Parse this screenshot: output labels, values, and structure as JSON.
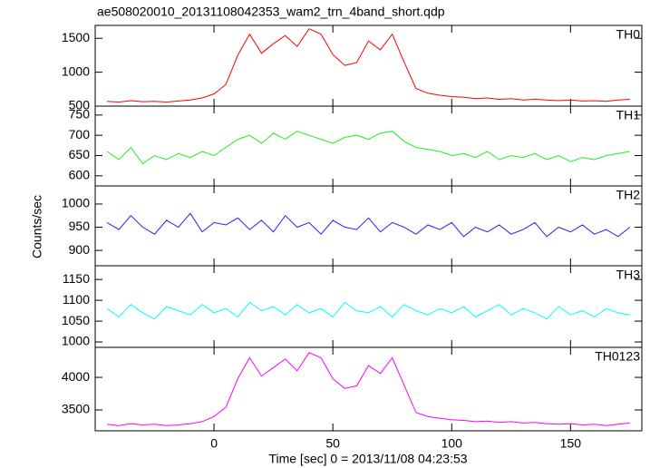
{
  "chart_data": [
    {
      "type": "line",
      "title": "ae508020010_20131108042353_wam2_trn_4band_short.qdp",
      "x": [
        -45,
        -40,
        -35,
        -30,
        -25,
        -20,
        -15,
        -10,
        -5,
        0,
        5,
        10,
        15,
        20,
        25,
        30,
        35,
        40,
        45,
        50,
        55,
        60,
        65,
        70,
        75,
        80,
        85,
        90,
        95,
        100,
        105,
        110,
        115,
        120,
        125,
        130,
        135,
        140,
        145,
        150,
        155,
        160,
        165,
        170,
        175
      ],
      "series": [
        {
          "name": "TH0",
          "color": "#ff0000",
          "values": [
            570,
            560,
            580,
            565,
            570,
            560,
            575,
            590,
            620,
            680,
            820,
            1250,
            1560,
            1280,
            1420,
            1540,
            1380,
            1640,
            1560,
            1260,
            1100,
            1140,
            1460,
            1330,
            1560,
            1150,
            760,
            690,
            660,
            640,
            630,
            610,
            620,
            600,
            610,
            590,
            600,
            590,
            580,
            590,
            575,
            580,
            570,
            590,
            600
          ]
        }
      ],
      "xlim": [
        -50,
        180
      ],
      "ylim": [
        500,
        1690
      ],
      "yticks": [
        500,
        1000,
        1500
      ]
    },
    {
      "type": "line",
      "x": [
        -45,
        -40,
        -35,
        -30,
        -25,
        -20,
        -15,
        -10,
        -5,
        0,
        5,
        10,
        15,
        20,
        25,
        30,
        35,
        40,
        45,
        50,
        55,
        60,
        65,
        70,
        75,
        80,
        85,
        90,
        95,
        100,
        105,
        110,
        115,
        120,
        125,
        130,
        135,
        140,
        145,
        150,
        155,
        160,
        165,
        170,
        175
      ],
      "series": [
        {
          "name": "TH1",
          "color": "#22ee22",
          "values": [
            660,
            640,
            670,
            630,
            650,
            640,
            655,
            645,
            660,
            650,
            670,
            690,
            700,
            680,
            705,
            690,
            710,
            700,
            690,
            680,
            695,
            700,
            690,
            705,
            710,
            685,
            670,
            665,
            660,
            650,
            655,
            645,
            660,
            640,
            650,
            645,
            655,
            640,
            650,
            635,
            645,
            640,
            650,
            655,
            660
          ]
        }
      ],
      "xlim": [
        -50,
        180
      ],
      "ylim": [
        575,
        772
      ],
      "yticks": [
        600,
        650,
        700,
        750
      ]
    },
    {
      "type": "line",
      "ylabel": "Counts/sec",
      "x": [
        -45,
        -40,
        -35,
        -30,
        -25,
        -20,
        -15,
        -10,
        -5,
        0,
        5,
        10,
        15,
        20,
        25,
        30,
        35,
        40,
        45,
        50,
        55,
        60,
        65,
        70,
        75,
        80,
        85,
        90,
        95,
        100,
        105,
        110,
        115,
        120,
        125,
        130,
        135,
        140,
        145,
        150,
        155,
        160,
        165,
        170,
        175
      ],
      "series": [
        {
          "name": "TH2",
          "color": "#2222ee",
          "values": [
            960,
            945,
            975,
            950,
            935,
            965,
            950,
            980,
            940,
            960,
            955,
            970,
            945,
            965,
            940,
            975,
            950,
            960,
            935,
            965,
            950,
            945,
            970,
            940,
            960,
            950,
            935,
            955,
            945,
            960,
            930,
            950,
            940,
            955,
            935,
            945,
            960,
            930,
            950,
            940,
            955,
            935,
            945,
            930,
            950
          ]
        }
      ],
      "xlim": [
        -50,
        180
      ],
      "ylim": [
        867,
        1039
      ],
      "yticks": [
        900,
        950,
        1000
      ]
    },
    {
      "type": "line",
      "x": [
        -45,
        -40,
        -35,
        -30,
        -25,
        -20,
        -15,
        -10,
        -5,
        0,
        5,
        10,
        15,
        20,
        25,
        30,
        35,
        40,
        45,
        50,
        55,
        60,
        65,
        70,
        75,
        80,
        85,
        90,
        95,
        100,
        105,
        110,
        115,
        120,
        125,
        130,
        135,
        140,
        145,
        150,
        155,
        160,
        165,
        170,
        175
      ],
      "series": [
        {
          "name": "TH3",
          "color": "#00ffff",
          "values": [
            1080,
            1060,
            1090,
            1070,
            1055,
            1085,
            1075,
            1065,
            1090,
            1070,
            1080,
            1060,
            1095,
            1075,
            1085,
            1065,
            1090,
            1070,
            1080,
            1060,
            1095,
            1075,
            1070,
            1085,
            1060,
            1090,
            1075,
            1065,
            1080,
            1070,
            1085,
            1060,
            1075,
            1090,
            1065,
            1080,
            1070,
            1055,
            1085,
            1065,
            1075,
            1060,
            1080,
            1070,
            1065
          ]
        }
      ],
      "xlim": [
        -50,
        180
      ],
      "ylim": [
        987,
        1183
      ],
      "yticks": [
        1000,
        1050,
        1100,
        1150
      ]
    },
    {
      "type": "line",
      "xlabel": "Time [sec] 0 = 2013/11/08 04:23:53",
      "x": [
        -45,
        -40,
        -35,
        -30,
        -25,
        -20,
        -15,
        -10,
        -5,
        0,
        5,
        10,
        15,
        20,
        25,
        30,
        35,
        40,
        45,
        50,
        55,
        60,
        65,
        70,
        75,
        80,
        85,
        90,
        95,
        100,
        105,
        110,
        115,
        120,
        125,
        130,
        135,
        140,
        145,
        150,
        155,
        160,
        165,
        170,
        175
      ],
      "series": [
        {
          "name": "TH0123",
          "color": "#ff00ff",
          "values": [
            3280,
            3260,
            3290,
            3270,
            3280,
            3260,
            3270,
            3290,
            3320,
            3400,
            3540,
            3980,
            4300,
            4020,
            4150,
            4280,
            4100,
            4380,
            4300,
            3980,
            3830,
            3870,
            4180,
            4060,
            4300,
            3880,
            3460,
            3400,
            3370,
            3350,
            3340,
            3320,
            3330,
            3310,
            3320,
            3300,
            3310,
            3290,
            3280,
            3290,
            3270,
            3280,
            3260,
            3280,
            3300
          ]
        }
      ],
      "xlim": [
        -50,
        180
      ],
      "ylim": [
        3180,
        4460
      ],
      "yticks": [
        3500,
        4000
      ],
      "xticks": [
        0,
        50,
        100,
        150
      ]
    }
  ]
}
